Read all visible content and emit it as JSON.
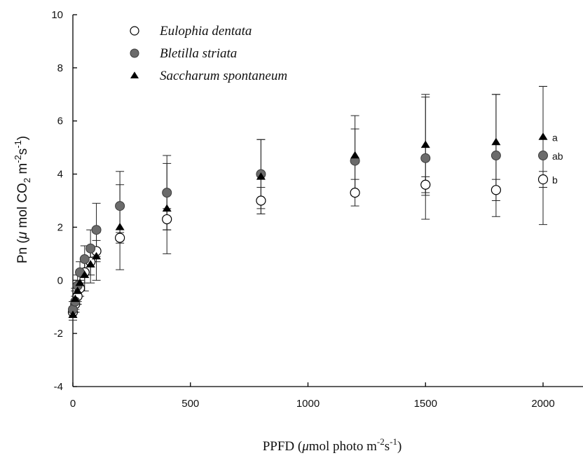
{
  "chart_data": {
    "type": "scatter",
    "title": "",
    "xlabel": {
      "pre": "PPFD (",
      "mu": "μ",
      "mid": "mol photo m",
      "sup1": "-2",
      "s": "s",
      "sup2": "-1",
      "post": ")"
    },
    "ylabel": {
      "pre": "Pn (",
      "mu": "μ",
      "mid": " mol CO",
      "sub": "2",
      "m": " m",
      "sup1": "-2",
      "s": "s",
      "sup2": "-1",
      "post": ")"
    },
    "xlim": [
      0,
      2000
    ],
    "ylim": [
      -4,
      10
    ],
    "xticks": [
      0,
      500,
      1000,
      1500,
      2000
    ],
    "yticks": [
      -4,
      -2,
      0,
      2,
      4,
      6,
      8,
      10
    ],
    "grid": false,
    "legend_position": "top-left",
    "series": [
      {
        "name": "Eulophia dentata",
        "marker": "open-circle",
        "color": "#000000",
        "x": [
          0,
          10,
          20,
          30,
          50,
          75,
          100,
          200,
          400,
          800,
          1200,
          1500,
          1800,
          2000
        ],
        "y": [
          -1.2,
          -0.9,
          -0.6,
          -0.3,
          0.3,
          0.7,
          1.1,
          1.6,
          2.3,
          3.0,
          3.3,
          3.6,
          3.4,
          3.8
        ],
        "err": [
          0.2,
          0.3,
          0.3,
          0.3,
          0.4,
          0.5,
          0.4,
          0.2,
          0.4,
          0.5,
          0.5,
          0.3,
          0.4,
          0.3
        ],
        "label": "b"
      },
      {
        "name": "Bletilla striata",
        "marker": "filled-circle",
        "color": "#6b6b6b",
        "x": [
          0,
          10,
          20,
          30,
          50,
          75,
          100,
          200,
          400,
          800,
          1200,
          1500,
          1800,
          2000
        ],
        "y": [
          -1.1,
          -0.8,
          -0.2,
          0.3,
          0.8,
          1.2,
          1.9,
          2.8,
          3.3,
          4.0,
          4.5,
          4.6,
          4.7,
          4.7
        ],
        "err": [
          0.3,
          0.4,
          0.4,
          0.4,
          0.5,
          0.7,
          1.0,
          1.3,
          1.4,
          1.3,
          1.2,
          2.3,
          2.3,
          2.6
        ],
        "label": "ab"
      },
      {
        "name": "Saccharum spontaneum",
        "marker": "filled-triangle",
        "color": "#000000",
        "x": [
          0,
          10,
          20,
          30,
          50,
          75,
          100,
          200,
          400,
          800,
          1200,
          1500,
          1800,
          2000
        ],
        "y": [
          -1.3,
          -0.7,
          -0.4,
          -0.1,
          0.2,
          0.6,
          0.9,
          2.0,
          2.7,
          3.9,
          4.7,
          5.1,
          5.2,
          5.4
        ],
        "err": [
          0.2,
          0.4,
          0.4,
          0.5,
          0.6,
          0.7,
          0.9,
          1.6,
          1.7,
          1.4,
          1.5,
          1.9,
          1.8,
          1.9
        ],
        "label": "a"
      }
    ]
  }
}
